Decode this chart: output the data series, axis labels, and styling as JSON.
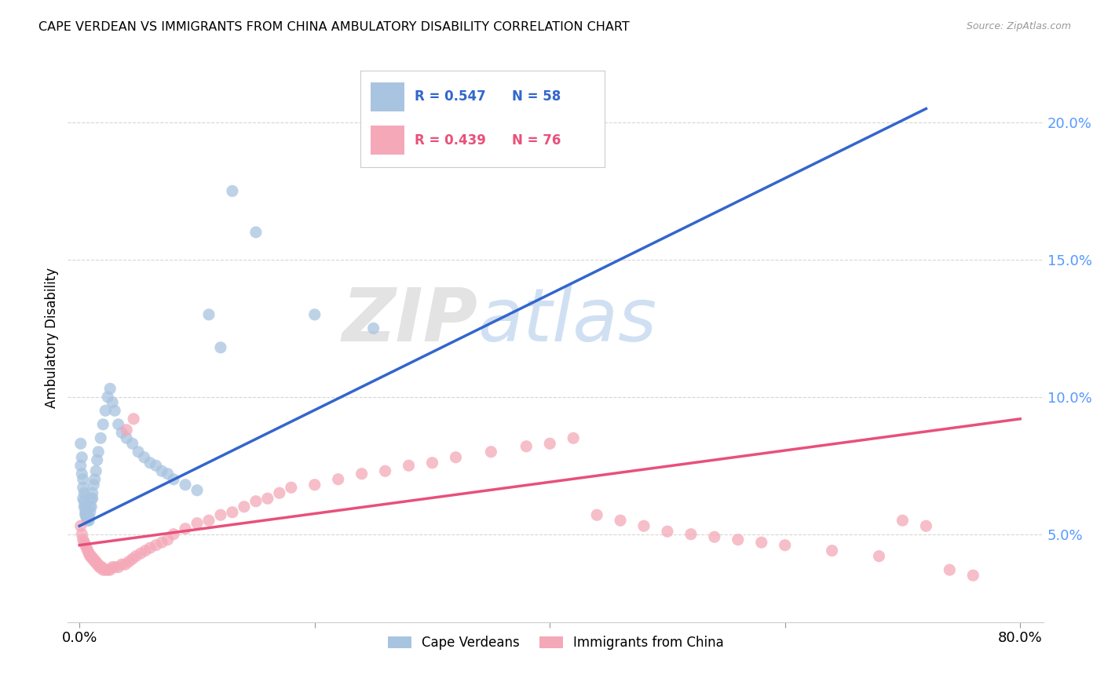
{
  "title": "CAPE VERDEAN VS IMMIGRANTS FROM CHINA AMBULATORY DISABILITY CORRELATION CHART",
  "source": "Source: ZipAtlas.com",
  "ylabel": "Ambulatory Disability",
  "yticks": [
    "5.0%",
    "10.0%",
    "15.0%",
    "20.0%"
  ],
  "ytick_vals": [
    0.05,
    0.1,
    0.15,
    0.2
  ],
  "xlim": [
    0.0,
    0.8
  ],
  "ylim": [
    0.018,
    0.225
  ],
  "legend_label_blue": "Cape Verdeans",
  "legend_label_pink": "Immigrants from China",
  "watermark_zip": "ZIP",
  "watermark_atlas": "atlas",
  "blue_color": "#a8c4e0",
  "pink_color": "#f4a8b8",
  "blue_line_color": "#3366cc",
  "pink_line_color": "#e8507a",
  "blue_scatter_x": [
    0.001,
    0.001,
    0.002,
    0.002,
    0.003,
    0.003,
    0.003,
    0.004,
    0.004,
    0.004,
    0.005,
    0.005,
    0.005,
    0.006,
    0.006,
    0.006,
    0.007,
    0.007,
    0.007,
    0.008,
    0.008,
    0.009,
    0.009,
    0.01,
    0.01,
    0.011,
    0.011,
    0.012,
    0.013,
    0.014,
    0.015,
    0.016,
    0.018,
    0.02,
    0.022,
    0.024,
    0.026,
    0.028,
    0.03,
    0.033,
    0.036,
    0.04,
    0.045,
    0.05,
    0.055,
    0.06,
    0.065,
    0.07,
    0.075,
    0.08,
    0.09,
    0.1,
    0.11,
    0.12,
    0.13,
    0.15,
    0.2,
    0.25
  ],
  "blue_scatter_y": [
    0.075,
    0.083,
    0.078,
    0.072,
    0.07,
    0.067,
    0.063,
    0.065,
    0.062,
    0.06,
    0.06,
    0.058,
    0.057,
    0.058,
    0.057,
    0.056,
    0.057,
    0.056,
    0.055,
    0.056,
    0.055,
    0.06,
    0.058,
    0.063,
    0.06,
    0.065,
    0.063,
    0.068,
    0.07,
    0.073,
    0.077,
    0.08,
    0.085,
    0.09,
    0.095,
    0.1,
    0.103,
    0.098,
    0.095,
    0.09,
    0.087,
    0.085,
    0.083,
    0.08,
    0.078,
    0.076,
    0.075,
    0.073,
    0.072,
    0.07,
    0.068,
    0.066,
    0.13,
    0.118,
    0.175,
    0.16,
    0.13,
    0.125
  ],
  "pink_scatter_x": [
    0.001,
    0.002,
    0.003,
    0.004,
    0.005,
    0.006,
    0.007,
    0.008,
    0.009,
    0.01,
    0.011,
    0.012,
    0.013,
    0.014,
    0.015,
    0.016,
    0.017,
    0.018,
    0.019,
    0.02,
    0.022,
    0.024,
    0.026,
    0.028,
    0.03,
    0.033,
    0.036,
    0.039,
    0.042,
    0.045,
    0.048,
    0.052,
    0.056,
    0.06,
    0.065,
    0.07,
    0.075,
    0.08,
    0.09,
    0.1,
    0.11,
    0.12,
    0.13,
    0.14,
    0.15,
    0.16,
    0.17,
    0.18,
    0.2,
    0.22,
    0.24,
    0.26,
    0.28,
    0.3,
    0.32,
    0.35,
    0.38,
    0.4,
    0.42,
    0.44,
    0.46,
    0.48,
    0.5,
    0.52,
    0.54,
    0.56,
    0.58,
    0.6,
    0.64,
    0.68,
    0.7,
    0.72,
    0.74,
    0.76,
    0.04,
    0.046
  ],
  "pink_scatter_y": [
    0.053,
    0.05,
    0.048,
    0.047,
    0.046,
    0.045,
    0.044,
    0.043,
    0.042,
    0.042,
    0.041,
    0.041,
    0.04,
    0.04,
    0.039,
    0.039,
    0.038,
    0.038,
    0.038,
    0.037,
    0.037,
    0.037,
    0.037,
    0.038,
    0.038,
    0.038,
    0.039,
    0.039,
    0.04,
    0.041,
    0.042,
    0.043,
    0.044,
    0.045,
    0.046,
    0.047,
    0.048,
    0.05,
    0.052,
    0.054,
    0.055,
    0.057,
    0.058,
    0.06,
    0.062,
    0.063,
    0.065,
    0.067,
    0.068,
    0.07,
    0.072,
    0.073,
    0.075,
    0.076,
    0.078,
    0.08,
    0.082,
    0.083,
    0.085,
    0.057,
    0.055,
    0.053,
    0.051,
    0.05,
    0.049,
    0.048,
    0.047,
    0.046,
    0.044,
    0.042,
    0.055,
    0.053,
    0.037,
    0.035,
    0.088,
    0.092
  ],
  "blue_line_x0": 0.0,
  "blue_line_y0": 0.053,
  "blue_line_x1": 0.72,
  "blue_line_y1": 0.205,
  "pink_line_x0": 0.0,
  "pink_line_y0": 0.046,
  "pink_line_x1": 0.8,
  "pink_line_y1": 0.092
}
